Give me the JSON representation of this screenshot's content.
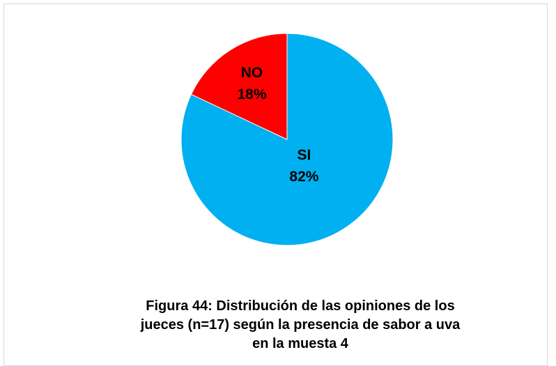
{
  "chart_data": {
    "type": "pie",
    "title": "Figura 44: Distribución de las opiniones de los jueces (n=17) según la presencia de sabor a uva en la muesta 4",
    "categories": [
      "SI",
      "NO"
    ],
    "values": [
      82,
      18
    ],
    "value_labels": [
      "82%",
      "18%"
    ],
    "colors": [
      "#00B0F0",
      "#FF0000"
    ]
  }
}
